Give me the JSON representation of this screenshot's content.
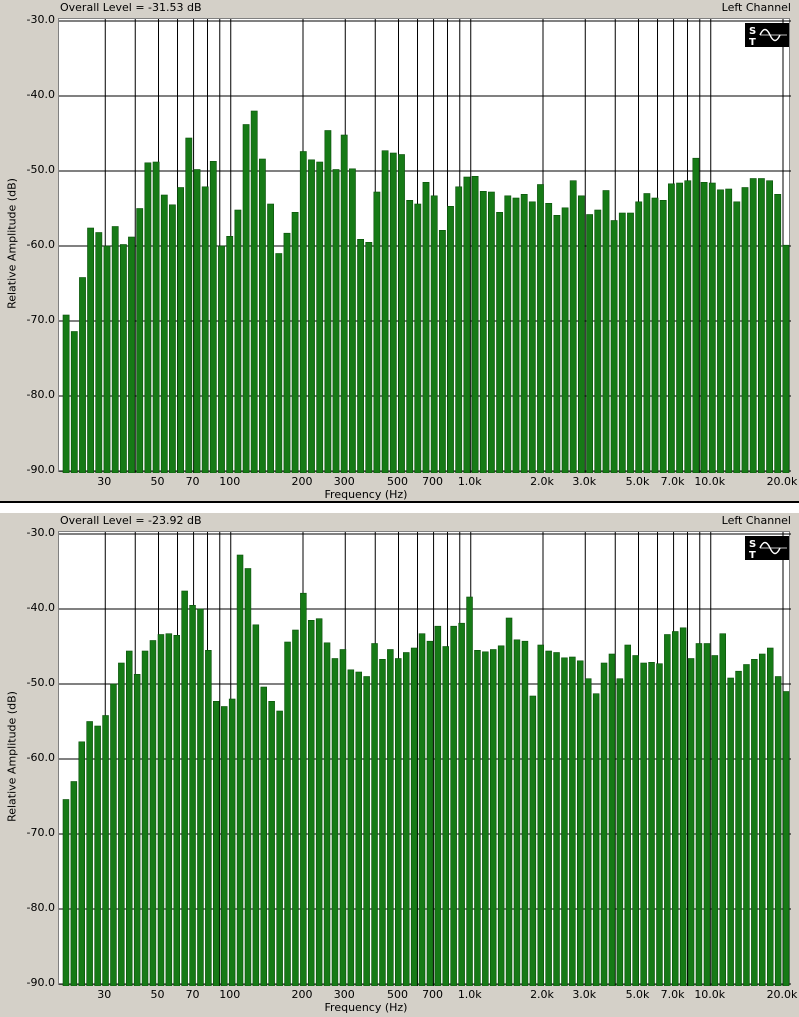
{
  "colors": {
    "bar": "#167a16",
    "bar_edge": "#0a4f0a",
    "grid": "#000000",
    "plot_bg": "#ffffff",
    "panel_bg": "#d4d0c8"
  },
  "logo": {
    "text_s": "S",
    "text_t": "T",
    "icon": "sine-wave-icon"
  },
  "chart_data": [
    {
      "type": "bar",
      "header_left": "Overall Level = -31.53 dB",
      "header_right": "Left Channel",
      "xlabel": "Frequency (Hz)",
      "ylabel": "Relative Amplitude (dB)",
      "ylim": [
        -90,
        -30
      ],
      "yticks": [
        "-30.0",
        "-40.0",
        "-50.0",
        "-60.0",
        "-70.0",
        "-80.0",
        "-90.0"
      ],
      "xticks": [
        "30",
        "50",
        "70",
        "100",
        "200",
        "300",
        "500",
        "700",
        "1.0k",
        "2.0k",
        "3.0k",
        "5.0k",
        "7.0k",
        "10.0k",
        "20.0k"
      ],
      "values": [
        -69.2,
        -71.4,
        -64.2,
        -57.6,
        -58.2,
        -60,
        -57.4,
        -59.8,
        -58.8,
        -55,
        -48.9,
        -48.8,
        -53.2,
        -54.5,
        -52.2,
        -45.6,
        -49.8,
        -52.1,
        -48.7,
        -60,
        -58.7,
        -55.2,
        -43.8,
        -42,
        -48.4,
        -54.4,
        -61,
        -58.3,
        -55.5,
        -47.4,
        -48.5,
        -48.8,
        -44.6,
        -49.8,
        -45.2,
        -49.7,
        -59.1,
        -59.5,
        -52.8,
        -47.3,
        -47.6,
        -47.8,
        -53.9,
        -54.4,
        -51.5,
        -53.3,
        -57.9,
        -54.7,
        -52.1,
        -50.8,
        -50.7,
        -52.7,
        -52.8,
        -55.5,
        -53.3,
        -53.6,
        -53.1,
        -54.1,
        -51.8,
        -54.3,
        -55.9,
        -54.9,
        -51.3,
        -53.3,
        -55.8,
        -55.2,
        -52.6,
        -56.6,
        -55.6,
        -55.6,
        -54.1,
        -53,
        -53.6,
        -53.9,
        -51.7,
        -51.6,
        -51.3,
        -48.3,
        -51.5,
        -51.6,
        -52.5,
        -52.4,
        -54.1,
        -52.2,
        -51,
        -51,
        -51.3,
        -53.1,
        -59.9
      ]
    },
    {
      "type": "bar",
      "header_left": "Overall Level = -23.92 dB",
      "header_right": "Left Channel",
      "xlabel": "Frequency (Hz)",
      "ylabel": "Relative Amplitude (dB)",
      "ylim": [
        -90,
        -30
      ],
      "yticks": [
        "-30.0",
        "-40.0",
        "-50.0",
        "-60.0",
        "-70.0",
        "-80.0",
        "-90.0"
      ],
      "xticks": [
        "30",
        "50",
        "70",
        "100",
        "200",
        "300",
        "500",
        "700",
        "1.0k",
        "2.0k",
        "3.0k",
        "5.0k",
        "7.0k",
        "10.0k",
        "20.0k"
      ],
      "values": [
        -65.4,
        -63,
        -57.7,
        -55,
        -55.6,
        -54.2,
        -50,
        -47.2,
        -45.6,
        -48.7,
        -45.6,
        -44.2,
        -43.4,
        -43.3,
        -43.5,
        -37.6,
        -39.5,
        -40,
        -45.5,
        -52.3,
        -53,
        -52,
        -32.8,
        -34.6,
        -42.1,
        -50.4,
        -52.3,
        -53.6,
        -44.4,
        -42.8,
        -37.9,
        -41.5,
        -41.3,
        -44.5,
        -46.6,
        -45.4,
        -48.1,
        -48.4,
        -49,
        -44.6,
        -46.7,
        -45.4,
        -46.6,
        -45.8,
        -45.2,
        -43.3,
        -44.3,
        -42.3,
        -45,
        -42.3,
        -41.9,
        -38.4,
        -45.5,
        -45.7,
        -45.4,
        -44.9,
        -41.2,
        -44.1,
        -44.3,
        -51.6,
        -44.8,
        -45.6,
        -45.8,
        -46.5,
        -46.4,
        -46.9,
        -49.3,
        -51.3,
        -47.2,
        -46,
        -49.3,
        -44.8,
        -46.2,
        -47.2,
        -47.1,
        -47.3,
        -43.4,
        -43,
        -42.5,
        -46.6,
        -44.6,
        -44.6,
        -46.2,
        -43.3,
        -49.2,
        -48.3,
        -47.4,
        -46.7,
        -46,
        -45.2,
        -49,
        -51
      ]
    }
  ]
}
